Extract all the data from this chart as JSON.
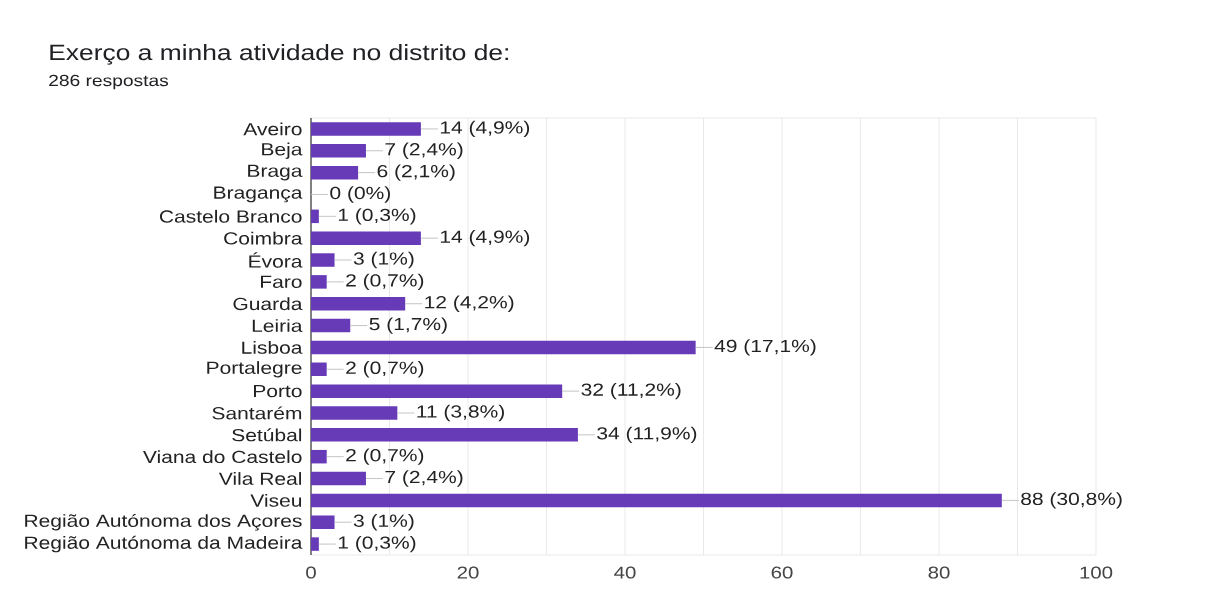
{
  "chart_data": {
    "type": "bar",
    "orientation": "horizontal",
    "title": "Exerço a minha atividade no distrito de:",
    "subtitle": "286 respostas",
    "categories": [
      "Aveiro",
      "Beja",
      "Braga",
      "Bragança",
      "Castelo Branco",
      "Coimbra",
      "Évora",
      "Faro",
      "Guarda",
      "Leiria",
      "Lisboa",
      "Portalegre",
      "Porto",
      "Santarém",
      "Setúbal",
      "Viana do Castelo",
      "Vila Real",
      "Viseu",
      "Região Autónoma dos Açores",
      "Região Autónoma da Madeira"
    ],
    "values": [
      14,
      7,
      6,
      0,
      1,
      14,
      3,
      2,
      12,
      5,
      49,
      2,
      32,
      11,
      34,
      2,
      7,
      88,
      3,
      1
    ],
    "value_labels": [
      "14 (4,9%)",
      "7 (2,4%)",
      "6 (2,1%)",
      "0 (0%)",
      "1 (0,3%)",
      "14 (4,9%)",
      "3 (1%)",
      "2 (0,7%)",
      "12 (4,2%)",
      "5 (1,7%)",
      "49 (17,1%)",
      "2 (0,7%)",
      "32 (11,2%)",
      "11 (3,8%)",
      "34 (11,9%)",
      "2 (0,7%)",
      "7 (2,4%)",
      "88 (30,8%)",
      "3 (1%)",
      "1 (0,3%)"
    ],
    "color": "#673ab7",
    "xlim": [
      0,
      100
    ],
    "xticks": [
      0,
      {
        "value": 10,
        "label": null
      },
      20,
      {
        "value": 30,
        "label": null
      },
      40,
      {
        "value": 50,
        "label": null
      },
      60,
      {
        "value": 70,
        "label": null
      },
      80,
      {
        "value": 90,
        "label": null
      },
      100
    ],
    "grid": "x"
  }
}
